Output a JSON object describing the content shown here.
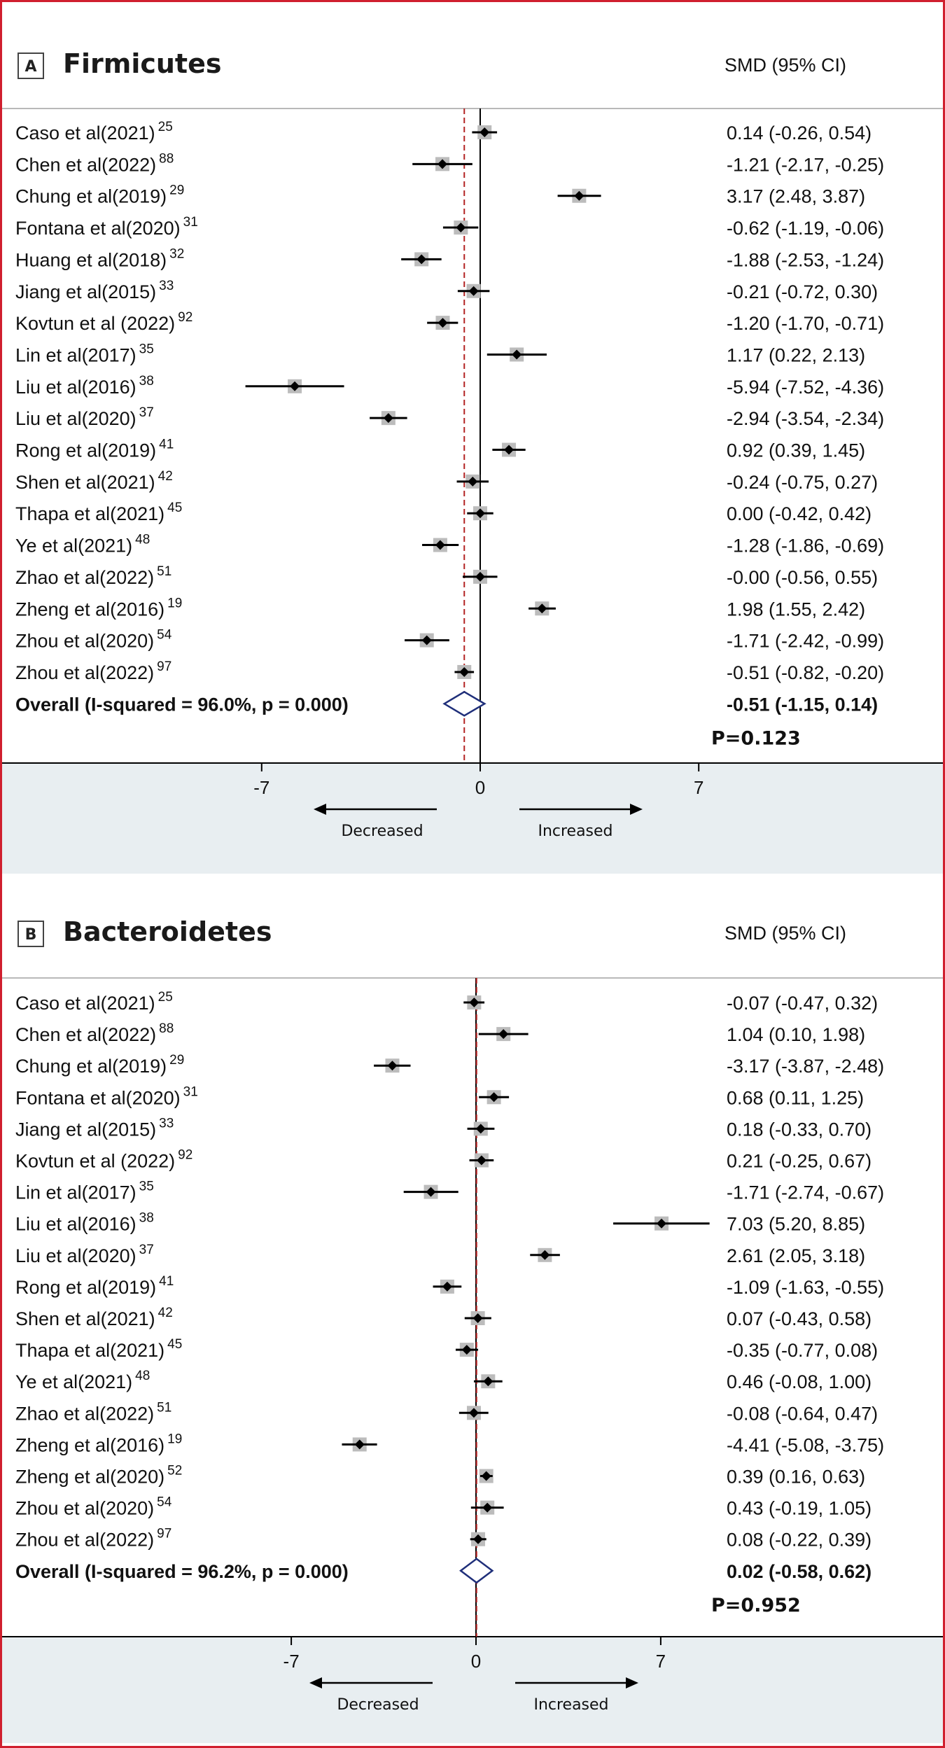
{
  "colors": {
    "border": "#d01f2e",
    "axis_band": "#e8eef1",
    "separator": "#b9b9b9",
    "null_line": "#000000",
    "pooled_line": "#b22222",
    "diamond": "#1f2f7a",
    "weight_box": "#bcbcbc",
    "point": "#000000"
  },
  "chart_data": [
    {
      "type": "forest",
      "panel_label": "A",
      "title": "Firmicutes",
      "effect_header": "SMD (95% CI)",
      "xlim": [
        -11,
        11
      ],
      "xticks": [
        -7,
        0,
        7
      ],
      "direction_labels": [
        "Decreased",
        "Increased"
      ],
      "studies": [
        {
          "label": "Caso et al(2021)",
          "ref": "25",
          "est": 0.14,
          "lo": -0.26,
          "hi": 0.54,
          "ci_text": "0.14 (-0.26, 0.54)"
        },
        {
          "label": "Chen et al(2022)",
          "ref": "88",
          "est": -1.21,
          "lo": -2.17,
          "hi": -0.25,
          "ci_text": "-1.21 (-2.17, -0.25)"
        },
        {
          "label": "Chung et al(2019)",
          "ref": "29",
          "est": 3.17,
          "lo": 2.48,
          "hi": 3.87,
          "ci_text": "3.17 (2.48, 3.87)"
        },
        {
          "label": "Fontana et al(2020)",
          "ref": "31",
          "est": -0.62,
          "lo": -1.19,
          "hi": -0.06,
          "ci_text": "-0.62 (-1.19, -0.06)"
        },
        {
          "label": "Huang et al(2018)",
          "ref": "32",
          "est": -1.88,
          "lo": -2.53,
          "hi": -1.24,
          "ci_text": "-1.88 (-2.53, -1.24)"
        },
        {
          "label": "Jiang et al(2015)",
          "ref": "33",
          "est": -0.21,
          "lo": -0.72,
          "hi": 0.3,
          "ci_text": "-0.21 (-0.72, 0.30)"
        },
        {
          "label": "Kovtun et al (2022)",
          "ref": "92",
          "est": -1.2,
          "lo": -1.7,
          "hi": -0.71,
          "ci_text": "-1.20 (-1.70, -0.71)"
        },
        {
          "label": "Lin et al(2017)",
          "ref": "35",
          "est": 1.17,
          "lo": 0.22,
          "hi": 2.13,
          "ci_text": "1.17 (0.22, 2.13)"
        },
        {
          "label": "Liu et al(2016)",
          "ref": "38",
          "est": -5.94,
          "lo": -7.52,
          "hi": -4.36,
          "ci_text": "-5.94 (-7.52, -4.36)"
        },
        {
          "label": "Liu et al(2020)",
          "ref": "37",
          "est": -2.94,
          "lo": -3.54,
          "hi": -2.34,
          "ci_text": "-2.94 (-3.54, -2.34)"
        },
        {
          "label": "Rong et al(2019)",
          "ref": "41",
          "est": 0.92,
          "lo": 0.39,
          "hi": 1.45,
          "ci_text": "0.92 (0.39, 1.45)"
        },
        {
          "label": "Shen et al(2021)",
          "ref": "42",
          "est": -0.24,
          "lo": -0.75,
          "hi": 0.27,
          "ci_text": "-0.24 (-0.75, 0.27)"
        },
        {
          "label": "Thapa et al(2021)",
          "ref": "45",
          "est": 0.0,
          "lo": -0.42,
          "hi": 0.42,
          "ci_text": "0.00 (-0.42, 0.42)"
        },
        {
          "label": "Ye et al(2021)",
          "ref": "48",
          "est": -1.28,
          "lo": -1.86,
          "hi": -0.69,
          "ci_text": "-1.28 (-1.86, -0.69)"
        },
        {
          "label": "Zhao et al(2022)",
          "ref": "51",
          "est": 0.0,
          "lo": -0.56,
          "hi": 0.55,
          "ci_text": "-0.00 (-0.56, 0.55)"
        },
        {
          "label": "Zheng et al(2016)",
          "ref": "19",
          "est": 1.98,
          "lo": 1.55,
          "hi": 2.42,
          "ci_text": "1.98 (1.55, 2.42)"
        },
        {
          "label": "Zhou et al(2020)",
          "ref": "54",
          "est": -1.71,
          "lo": -2.42,
          "hi": -0.99,
          "ci_text": "-1.71 (-2.42, -0.99)"
        },
        {
          "label": "Zhou et al(2022)",
          "ref": "97",
          "est": -0.51,
          "lo": -0.82,
          "hi": -0.2,
          "ci_text": "-0.51 (-0.82, -0.20)"
        }
      ],
      "overall": {
        "label": "Overall  (I-squared = 96.0%, p = 0.000)",
        "est": -0.51,
        "lo": -1.15,
        "hi": 0.14,
        "ci_text": "-0.51 (-1.15, 0.14)"
      },
      "p_value": "P=0.123"
    },
    {
      "type": "forest",
      "panel_label": "B",
      "title": "Bacteroidetes",
      "effect_header": "SMD (95% CI)",
      "xlim": [
        -11,
        11
      ],
      "xticks": [
        -7,
        0,
        7
      ],
      "direction_labels": [
        "Decreased",
        "Increased"
      ],
      "studies": [
        {
          "label": "Caso et al(2021)",
          "ref": "25",
          "est": -0.07,
          "lo": -0.47,
          "hi": 0.32,
          "ci_text": "-0.07 (-0.47, 0.32)"
        },
        {
          "label": "Chen et al(2022)",
          "ref": "88",
          "est": 1.04,
          "lo": 0.1,
          "hi": 1.98,
          "ci_text": "1.04 (0.10, 1.98)"
        },
        {
          "label": "Chung et al(2019)",
          "ref": "29",
          "est": -3.17,
          "lo": -3.87,
          "hi": -2.48,
          "ci_text": "-3.17 (-3.87, -2.48)"
        },
        {
          "label": "Fontana et al(2020)",
          "ref": "31",
          "est": 0.68,
          "lo": 0.11,
          "hi": 1.25,
          "ci_text": "0.68 (0.11, 1.25)"
        },
        {
          "label": "Jiang et al(2015)",
          "ref": "33",
          "est": 0.18,
          "lo": -0.33,
          "hi": 0.7,
          "ci_text": "0.18 (-0.33, 0.70)"
        },
        {
          "label": "Kovtun et al (2022)",
          "ref": "92",
          "est": 0.21,
          "lo": -0.25,
          "hi": 0.67,
          "ci_text": "0.21 (-0.25, 0.67)"
        },
        {
          "label": "Lin et al(2017)",
          "ref": "35",
          "est": -1.71,
          "lo": -2.74,
          "hi": -0.67,
          "ci_text": "-1.71 (-2.74, -0.67)"
        },
        {
          "label": "Liu et al(2016)",
          "ref": "38",
          "est": 7.03,
          "lo": 5.2,
          "hi": 8.85,
          "ci_text": "7.03 (5.20, 8.85)"
        },
        {
          "label": "Liu et al(2020)",
          "ref": "37",
          "est": 2.61,
          "lo": 2.05,
          "hi": 3.18,
          "ci_text": "2.61 (2.05, 3.18)"
        },
        {
          "label": "Rong et al(2019)",
          "ref": "41",
          "est": -1.09,
          "lo": -1.63,
          "hi": -0.55,
          "ci_text": "-1.09 (-1.63, -0.55)"
        },
        {
          "label": "Shen et al(2021)",
          "ref": "42",
          "est": 0.07,
          "lo": -0.43,
          "hi": 0.58,
          "ci_text": "0.07 (-0.43, 0.58)"
        },
        {
          "label": "Thapa et al(2021)",
          "ref": "45",
          "est": -0.35,
          "lo": -0.77,
          "hi": 0.08,
          "ci_text": "-0.35 (-0.77, 0.08)"
        },
        {
          "label": "Ye et al(2021)",
          "ref": "48",
          "est": 0.46,
          "lo": -0.08,
          "hi": 1.0,
          "ci_text": "0.46 (-0.08, 1.00)"
        },
        {
          "label": "Zhao et al(2022)",
          "ref": "51",
          "est": -0.08,
          "lo": -0.64,
          "hi": 0.47,
          "ci_text": "-0.08 (-0.64, 0.47)"
        },
        {
          "label": "Zheng et al(2016)",
          "ref": "19",
          "est": -4.41,
          "lo": -5.08,
          "hi": -3.75,
          "ci_text": "-4.41 (-5.08, -3.75)"
        },
        {
          "label": "Zheng et al(2020)",
          "ref": "52",
          "est": 0.39,
          "lo": 0.16,
          "hi": 0.63,
          "ci_text": "0.39 (0.16, 0.63)"
        },
        {
          "label": "Zhou et al(2020)",
          "ref": "54",
          "est": 0.43,
          "lo": -0.19,
          "hi": 1.05,
          "ci_text": "0.43 (-0.19, 1.05)"
        },
        {
          "label": "Zhou et al(2022)",
          "ref": "97",
          "est": 0.08,
          "lo": -0.22,
          "hi": 0.39,
          "ci_text": "0.08 (-0.22, 0.39)"
        }
      ],
      "overall": {
        "label": "Overall  (I-squared = 96.2%, p = 0.000)",
        "est": 0.02,
        "lo": -0.58,
        "hi": 0.62,
        "ci_text": "0.02 (-0.58, 0.62)"
      },
      "p_value": "P=0.952"
    }
  ]
}
